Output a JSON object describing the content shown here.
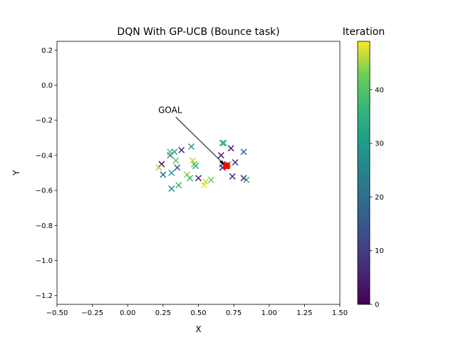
{
  "chart_data": {
    "type": "scatter",
    "title": "DQN With GP-UCB (Bounce task)",
    "xlabel": "X",
    "ylabel": "Y",
    "xlim": [
      -0.5,
      1.5
    ],
    "ylim": [
      -1.25,
      0.25
    ],
    "xticks": [
      "−0.50",
      "−0.25",
      "0.00",
      "0.25",
      "0.50",
      "0.75",
      "1.00",
      "1.25",
      "1.50"
    ],
    "xtick_values": [
      -0.5,
      -0.25,
      0.0,
      0.25,
      0.5,
      0.75,
      1.0,
      1.25,
      1.5
    ],
    "yticks": [
      "0.2",
      "0.0",
      "−0.2",
      "−0.4",
      "−0.6",
      "−0.8",
      "−1.0",
      "−1.2"
    ],
    "ytick_values": [
      0.2,
      0.0,
      -0.2,
      -0.4,
      -0.6,
      -0.8,
      -1.0,
      -1.2
    ],
    "grid": false,
    "marker": "x",
    "colormap": "viridis",
    "colorbar": {
      "label": "Iteration",
      "range": [
        0,
        49
      ],
      "ticks": [
        "0",
        "10",
        "20",
        "30",
        "40"
      ],
      "tick_values": [
        0,
        10,
        20,
        30,
        40
      ]
    },
    "points": [
      {
        "x": 0.24,
        "y": -0.45,
        "iter": 2
      },
      {
        "x": 0.38,
        "y": -0.37,
        "iter": 6
      },
      {
        "x": 0.5,
        "y": -0.53,
        "iter": 5
      },
      {
        "x": 0.66,
        "y": -0.4,
        "iter": 4
      },
      {
        "x": 0.73,
        "y": -0.36,
        "iter": 6
      },
      {
        "x": 0.76,
        "y": -0.44,
        "iter": 7
      },
      {
        "x": 0.74,
        "y": -0.52,
        "iter": 8
      },
      {
        "x": 0.82,
        "y": -0.53,
        "iter": 5
      },
      {
        "x": 0.67,
        "y": -0.47,
        "iter": 3
      },
      {
        "x": 0.35,
        "y": -0.47,
        "iter": 14
      },
      {
        "x": 0.82,
        "y": -0.38,
        "iter": 17
      },
      {
        "x": 0.25,
        "y": -0.51,
        "iter": 20
      },
      {
        "x": 0.67,
        "y": -0.45,
        "iter": 12
      },
      {
        "x": 0.3,
        "y": -0.4,
        "iter": 24
      },
      {
        "x": 0.31,
        "y": -0.59,
        "iter": 27
      },
      {
        "x": 0.45,
        "y": -0.35,
        "iter": 30
      },
      {
        "x": 0.31,
        "y": -0.5,
        "iter": 31
      },
      {
        "x": 0.33,
        "y": -0.38,
        "iter": 33
      },
      {
        "x": 0.36,
        "y": -0.57,
        "iter": 36
      },
      {
        "x": 0.67,
        "y": -0.33,
        "iter": 34
      },
      {
        "x": 0.68,
        "y": -0.33,
        "iter": 38
      },
      {
        "x": 0.84,
        "y": -0.54,
        "iter": 37
      },
      {
        "x": 0.44,
        "y": -0.53,
        "iter": 35
      },
      {
        "x": 0.48,
        "y": -0.46,
        "iter": 32
      },
      {
        "x": 0.3,
        "y": -0.38,
        "iter": 39
      },
      {
        "x": 0.34,
        "y": -0.43,
        "iter": 41
      },
      {
        "x": 0.47,
        "y": -0.45,
        "iter": 40
      },
      {
        "x": 0.59,
        "y": -0.54,
        "iter": 42
      },
      {
        "x": 0.22,
        "y": -0.47,
        "iter": 45
      },
      {
        "x": 0.42,
        "y": -0.51,
        "iter": 44
      },
      {
        "x": 0.46,
        "y": -0.43,
        "iter": 46
      },
      {
        "x": 0.54,
        "y": -0.57,
        "iter": 48
      },
      {
        "x": 0.55,
        "y": -0.55,
        "iter": 47
      },
      {
        "x": 0.69,
        "y": -0.46,
        "iter": 28
      },
      {
        "x": 0.71,
        "y": -0.45,
        "iter": 43
      }
    ],
    "goal": {
      "x": 0.7,
      "y": -0.46,
      "color": "#ff0000"
    },
    "annotations": [
      {
        "text": "GOAL",
        "text_x": 0.3,
        "text_y": -0.15,
        "arrow_x": 0.68,
        "arrow_y": -0.45
      }
    ]
  }
}
